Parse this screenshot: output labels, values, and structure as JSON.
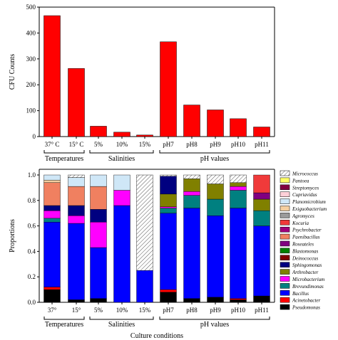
{
  "chart_data": [
    {
      "type": "bar",
      "ylabel": "CFU Counts",
      "ylim": [
        0,
        500
      ],
      "yticks": [
        0,
        100,
        200,
        300,
        400,
        500
      ],
      "color": "#ff0000",
      "groups": [
        {
          "label": "Temperatures",
          "categories": [
            "37° C",
            "15° C"
          ],
          "values": [
            467,
            263
          ]
        },
        {
          "label": "Salinities",
          "categories": [
            "5%",
            "10%",
            "15%"
          ],
          "values": [
            40,
            17,
            6
          ]
        },
        {
          "label": "pH values",
          "categories": [
            "pH7",
            "pH8",
            "pH9",
            "pH10",
            "pH11"
          ],
          "values": [
            366,
            122,
            103,
            69,
            37
          ]
        }
      ]
    },
    {
      "type": "bar",
      "stacked": true,
      "ylabel": "Proportions",
      "xlabel": "Culture conditions",
      "ylim": [
        0,
        1.0
      ],
      "yticks": [
        "0.0",
        "0.2",
        "0.4",
        "0.6",
        "0.8",
        "1.0"
      ],
      "groups": [
        {
          "label": "Temperatures",
          "categories": [
            "37°",
            "15°"
          ]
        },
        {
          "label": "Salinities",
          "categories": [
            "5%",
            "10%",
            "15%"
          ]
        },
        {
          "label": "pH values",
          "categories": [
            "pH7",
            "pH8",
            "pH9",
            "pH10",
            "pH11"
          ]
        }
      ],
      "legend_position": "right",
      "series": [
        {
          "name": "Pseudomonas",
          "color": "#000000",
          "values": [
            0.1,
            0.02,
            0.03,
            0.0,
            0.0,
            0.08,
            0.03,
            0.04,
            0.02,
            0.05
          ]
        },
        {
          "name": "Acinetobacter",
          "color": "#ff0000",
          "values": [
            0.02,
            0.0,
            0.0,
            0.0,
            0.0,
            0.02,
            0.0,
            0.0,
            0.01,
            0.0
          ]
        },
        {
          "name": "Bacillus",
          "color": "#0000ff",
          "values": [
            0.51,
            0.6,
            0.4,
            0.76,
            0.25,
            0.6,
            0.71,
            0.64,
            0.71,
            0.55
          ]
        },
        {
          "name": "Brevundimonas",
          "color": "#008080",
          "values": [
            0.03,
            0.0,
            0.0,
            0.0,
            0.0,
            0.04,
            0.1,
            0.13,
            0.14,
            0.12
          ]
        },
        {
          "name": "Microbacterium",
          "color": "#ff00ff",
          "values": [
            0.06,
            0.06,
            0.2,
            0.12,
            0.0,
            0.01,
            0.03,
            0.0,
            0.03,
            0.0
          ]
        },
        {
          "name": "Arthrobacter",
          "color": "#808000",
          "values": [
            0.0,
            0.0,
            0.0,
            0.0,
            0.0,
            0.1,
            0.1,
            0.12,
            0.03,
            0.09
          ]
        },
        {
          "name": "Sphingomonas",
          "color": "#000080",
          "values": [
            0.04,
            0.08,
            0.1,
            0.0,
            0.0,
            0.14,
            0.0,
            0.0,
            0.0,
            0.0
          ]
        },
        {
          "name": "Deinococcus",
          "color": "#800000",
          "values": [
            0.0,
            0.0,
            0.0,
            0.0,
            0.0,
            0.0,
            0.0,
            0.0,
            0.0,
            0.0
          ]
        },
        {
          "name": "Blastomonas",
          "color": "#008000",
          "values": [
            0.0,
            0.0,
            0.0,
            0.0,
            0.0,
            0.0,
            0.0,
            0.0,
            0.0,
            0.0
          ]
        },
        {
          "name": "Roseateles",
          "color": "#800080",
          "values": [
            0.0,
            0.0,
            0.0,
            0.0,
            0.0,
            0.0,
            0.0,
            0.0,
            0.0,
            0.05
          ]
        },
        {
          "name": "Paenibacillus",
          "color": "#f08060",
          "values": [
            0.18,
            0.15,
            0.18,
            0.0,
            0.0,
            0.0,
            0.0,
            0.0,
            0.0,
            0.0
          ]
        },
        {
          "name": "Psychrobacter",
          "color": "#a0007a",
          "values": [
            0.0,
            0.0,
            0.0,
            0.0,
            0.0,
            0.0,
            0.0,
            0.0,
            0.0,
            0.0
          ]
        },
        {
          "name": "Kocuria",
          "color": "#f03a3a",
          "values": [
            0.0,
            0.0,
            0.0,
            0.0,
            0.0,
            0.0,
            0.0,
            0.0,
            0.0,
            0.14
          ]
        },
        {
          "name": "Agromyces",
          "color": "#9a9a9a",
          "values": [
            0.0,
            0.0,
            0.0,
            0.0,
            0.0,
            0.0,
            0.0,
            0.0,
            0.0,
            0.0
          ]
        },
        {
          "name": "Exiguobacterium",
          "color": "#f5cfa0",
          "values": [
            0.02,
            0.0,
            0.0,
            0.0,
            0.0,
            0.0,
            0.0,
            0.0,
            0.0,
            0.0
          ]
        },
        {
          "name": "Planomicrobium",
          "color": "#cfe7f7",
          "values": [
            0.04,
            0.07,
            0.09,
            0.12,
            0.0,
            0.0,
            0.0,
            0.0,
            0.0,
            0.0
          ]
        },
        {
          "name": "Cupriavidus",
          "color": "#ffd0d8",
          "values": [
            0.0,
            0.0,
            0.0,
            0.0,
            0.0,
            0.0,
            0.0,
            0.0,
            0.0,
            0.0
          ]
        },
        {
          "name": "Streptomyces",
          "color": "#800040",
          "values": [
            0.0,
            0.0,
            0.0,
            0.0,
            0.0,
            0.0,
            0.0,
            0.0,
            0.0,
            0.0
          ]
        },
        {
          "name": "Pantoea",
          "color": "#ffff66",
          "values": [
            0.0,
            0.0,
            0.0,
            0.0,
            0.0,
            0.0,
            0.0,
            0.0,
            0.0,
            0.0
          ]
        },
        {
          "name": "Micrococcus",
          "color": "hatch",
          "values": [
            0.0,
            0.02,
            0.0,
            0.0,
            0.75,
            0.01,
            0.03,
            0.07,
            0.06,
            0.0
          ]
        }
      ]
    }
  ]
}
